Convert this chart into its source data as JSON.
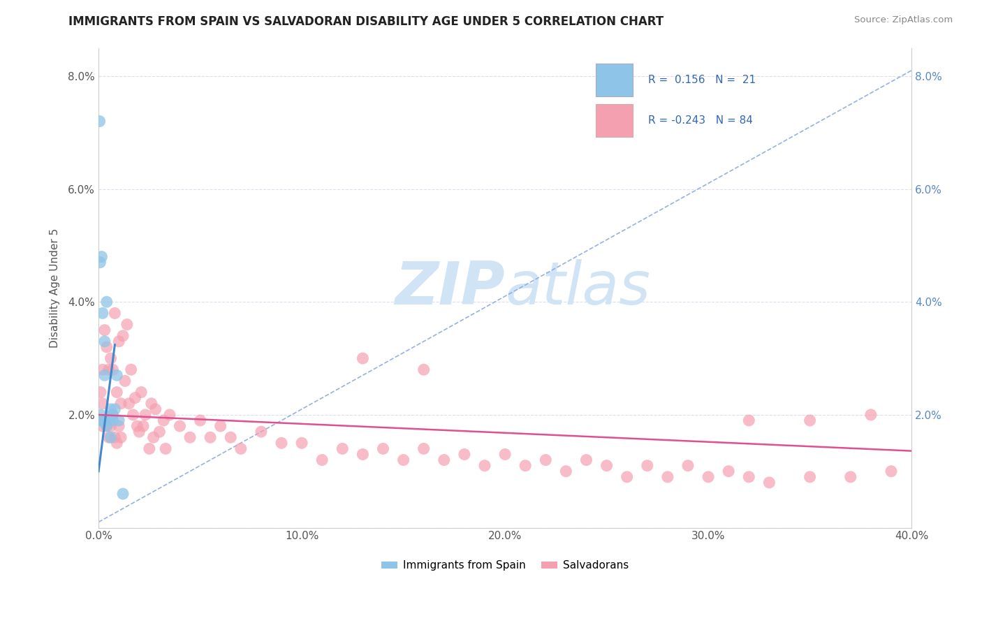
{
  "title": "IMMIGRANTS FROM SPAIN VS SALVADORAN DISABILITY AGE UNDER 5 CORRELATION CHART",
  "source": "Source: ZipAtlas.com",
  "ylabel": "Disability Age Under 5",
  "xlim": [
    0.0,
    0.4
  ],
  "ylim": [
    0.0,
    0.085
  ],
  "xticks": [
    0.0,
    0.1,
    0.2,
    0.3,
    0.4
  ],
  "yticks": [
    0.0,
    0.02,
    0.04,
    0.06,
    0.08
  ],
  "color_spain": "#8ec4e8",
  "color_salvador": "#f4a0b0",
  "color_spain_line_solid": "#4488cc",
  "color_spain_line_dash": "#88aadd",
  "color_salvador_line": "#e05090",
  "watermark_color": "#d0e4f5",
  "spain_x": [
    0.0005,
    0.0008,
    0.001,
    0.001,
    0.0015,
    0.002,
    0.002,
    0.003,
    0.003,
    0.003,
    0.004,
    0.004,
    0.005,
    0.006,
    0.006,
    0.007,
    0.007,
    0.008,
    0.009,
    0.01,
    0.012
  ],
  "spain_y": [
    0.072,
    0.047,
    0.02,
    0.019,
    0.048,
    0.038,
    0.019,
    0.033,
    0.027,
    0.019,
    0.04,
    0.018,
    0.019,
    0.021,
    0.016,
    0.019,
    0.02,
    0.021,
    0.027,
    0.019,
    0.006
  ],
  "salvador_x": [
    0.001,
    0.001,
    0.002,
    0.002,
    0.002,
    0.003,
    0.003,
    0.004,
    0.004,
    0.005,
    0.005,
    0.006,
    0.006,
    0.007,
    0.007,
    0.008,
    0.008,
    0.009,
    0.009,
    0.01,
    0.01,
    0.011,
    0.011,
    0.012,
    0.013,
    0.014,
    0.015,
    0.016,
    0.017,
    0.018,
    0.019,
    0.02,
    0.021,
    0.022,
    0.023,
    0.025,
    0.026,
    0.027,
    0.028,
    0.03,
    0.032,
    0.033,
    0.035,
    0.04,
    0.045,
    0.05,
    0.055,
    0.06,
    0.065,
    0.07,
    0.08,
    0.09,
    0.1,
    0.11,
    0.12,
    0.13,
    0.14,
    0.15,
    0.16,
    0.17,
    0.18,
    0.19,
    0.2,
    0.21,
    0.22,
    0.23,
    0.24,
    0.25,
    0.26,
    0.27,
    0.28,
    0.29,
    0.3,
    0.31,
    0.32,
    0.33,
    0.35,
    0.37,
    0.39,
    0.13,
    0.16,
    0.32,
    0.35,
    0.38
  ],
  "salvador_y": [
    0.024,
    0.019,
    0.028,
    0.022,
    0.018,
    0.035,
    0.019,
    0.032,
    0.018,
    0.028,
    0.016,
    0.03,
    0.018,
    0.028,
    0.02,
    0.038,
    0.016,
    0.024,
    0.015,
    0.033,
    0.018,
    0.022,
    0.016,
    0.034,
    0.026,
    0.036,
    0.022,
    0.028,
    0.02,
    0.023,
    0.018,
    0.017,
    0.024,
    0.018,
    0.02,
    0.014,
    0.022,
    0.016,
    0.021,
    0.017,
    0.019,
    0.014,
    0.02,
    0.018,
    0.016,
    0.019,
    0.016,
    0.018,
    0.016,
    0.014,
    0.017,
    0.015,
    0.015,
    0.012,
    0.014,
    0.013,
    0.014,
    0.012,
    0.014,
    0.012,
    0.013,
    0.011,
    0.013,
    0.011,
    0.012,
    0.01,
    0.012,
    0.011,
    0.009,
    0.011,
    0.009,
    0.011,
    0.009,
    0.01,
    0.009,
    0.008,
    0.009,
    0.009,
    0.01,
    0.03,
    0.028,
    0.019,
    0.019,
    0.02
  ]
}
